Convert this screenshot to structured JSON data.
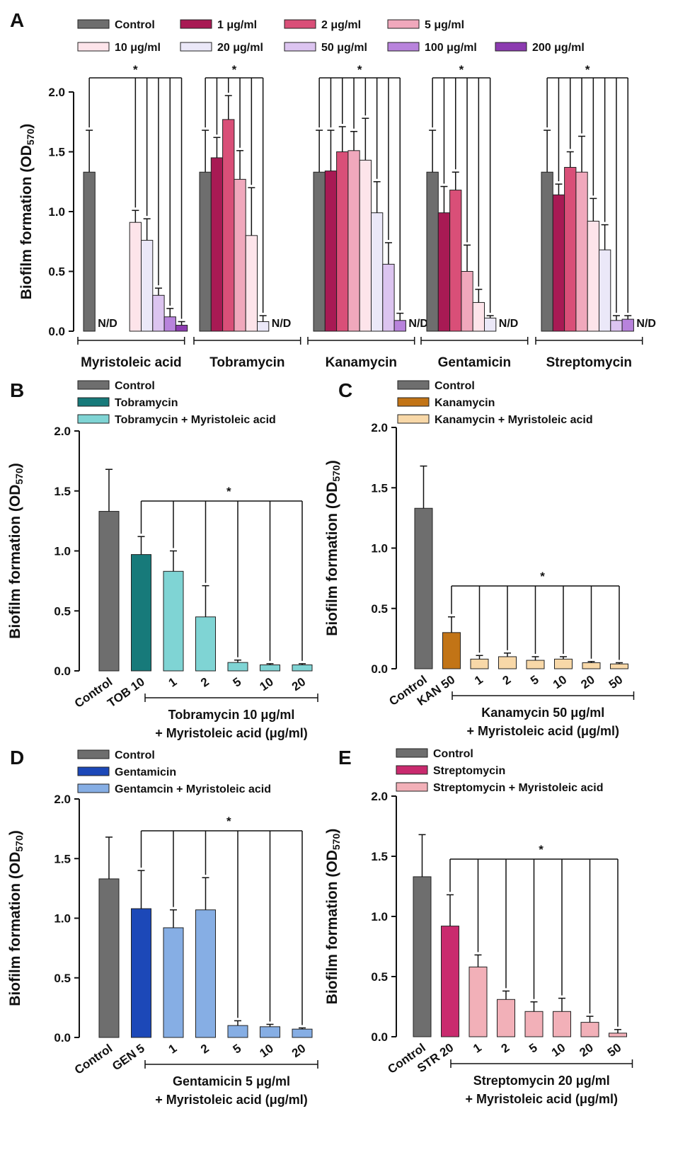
{
  "figure": {
    "panel_labels": [
      "A",
      "B",
      "C",
      "D",
      "E"
    ]
  },
  "chart_data": [
    {
      "panel": "A",
      "type": "bar",
      "ylabel": "Biofilm formation (OD570)",
      "ylim": [
        0,
        2.0
      ],
      "yticks": [
        "0.0",
        "0.5",
        "1.0",
        "1.5",
        "2.0"
      ],
      "legend": {
        "placement": "top",
        "entries": [
          {
            "label": "Control",
            "color": "#6e6e6e"
          },
          {
            "label": "1 μg/ml",
            "color": "#a81a54"
          },
          {
            "label": "2 μg/ml",
            "color": "#d94f78"
          },
          {
            "label": "5 μg/ml",
            "color": "#f0a8bc"
          },
          {
            "label": "10 μg/ml",
            "color": "#fde4ea"
          },
          {
            "label": "20 μg/ml",
            "color": "#ebe8f8"
          },
          {
            "label": "50 μg/ml",
            "color": "#dcc4f0"
          },
          {
            "label": "100 μg/ml",
            "color": "#b883dc"
          },
          {
            "label": "200 μg/ml",
            "color": "#8c3bb0"
          }
        ]
      },
      "groups": [
        {
          "name": "Myristoleic acid",
          "values": [
            1.33,
            null,
            null,
            null,
            0.91,
            0.76,
            0.3,
            0.12,
            0.05
          ],
          "errors": [
            0.35,
            null,
            null,
            null,
            0.1,
            0.18,
            0.06,
            0.07,
            0.03
          ],
          "nd": "N/D",
          "nd_index": 1
        },
        {
          "name": "Tobramycin",
          "values": [
            1.33,
            1.45,
            1.77,
            1.27,
            0.8,
            0.08,
            null,
            null,
            null
          ],
          "errors": [
            0.35,
            0.17,
            0.2,
            0.24,
            0.4,
            0.05,
            null,
            null,
            null
          ],
          "nd": "N/D",
          "nd_index": 6
        },
        {
          "name": "Kanamycin",
          "values": [
            1.33,
            1.34,
            1.5,
            1.51,
            1.43,
            0.99,
            0.56,
            0.09,
            null
          ],
          "errors": [
            0.35,
            0.34,
            0.21,
            0.16,
            0.35,
            0.26,
            0.18,
            0.06,
            null
          ],
          "nd": "N/D",
          "nd_index": 8
        },
        {
          "name": "Gentamicin",
          "values": [
            1.33,
            0.99,
            1.18,
            0.5,
            0.24,
            0.11,
            null,
            null,
            null
          ],
          "errors": [
            0.35,
            0.22,
            0.15,
            0.22,
            0.11,
            0.02,
            null,
            null,
            null
          ],
          "nd": "N/D",
          "nd_index": 6
        },
        {
          "name": "Streptomycin",
          "values": [
            1.33,
            1.14,
            1.37,
            1.33,
            0.92,
            0.68,
            0.09,
            0.1,
            null
          ],
          "errors": [
            0.35,
            0.09,
            0.13,
            0.3,
            0.19,
            0.21,
            0.04,
            0.03,
            null
          ],
          "nd": "N/D",
          "nd_index": 8
        }
      ],
      "significance": "*"
    },
    {
      "panel": "B",
      "type": "bar",
      "ylabel": "Biofilm formation (OD570)",
      "ylim": [
        0,
        2.0
      ],
      "yticks": [
        "0.0",
        "0.5",
        "1.0",
        "1.5",
        "2.0"
      ],
      "legend": [
        {
          "label": "Control",
          "color": "#6e6e6e"
        },
        {
          "label": "Tobramycin",
          "color": "#177a7a"
        },
        {
          "label": "Tobramycin + Myristoleic acid",
          "color": "#7fd4d4"
        }
      ],
      "categories": [
        "Control",
        "TOB 10",
        "1",
        "2",
        "5",
        "10",
        "20"
      ],
      "values": [
        1.33,
        0.97,
        0.83,
        0.45,
        0.07,
        0.05,
        0.05
      ],
      "errors": [
        0.35,
        0.15,
        0.17,
        0.26,
        0.02,
        0.01,
        0.01
      ],
      "bar_series": [
        0,
        1,
        2,
        2,
        2,
        2,
        2
      ],
      "significance": "*",
      "xlabel_line1": "Tobramycin 10 μg/ml",
      "xlabel_line2": "+ Myristoleic acid (μg/ml)"
    },
    {
      "panel": "C",
      "type": "bar",
      "ylabel": "Biofilm formation (OD570)",
      "ylim": [
        0,
        2.0
      ],
      "yticks": [
        "0.0",
        "0.5",
        "1.0",
        "1.5",
        "2.0"
      ],
      "legend": [
        {
          "label": "Control",
          "color": "#6e6e6e"
        },
        {
          "label": "Kanamycin",
          "color": "#c27416"
        },
        {
          "label": "Kanamycin + Myristoleic acid",
          "color": "#f8d8a8"
        }
      ],
      "categories": [
        "Control",
        "KAN 50",
        "1",
        "2",
        "5",
        "10",
        "20",
        "50"
      ],
      "values": [
        1.33,
        0.3,
        0.08,
        0.1,
        0.07,
        0.08,
        0.05,
        0.04
      ],
      "errors": [
        0.35,
        0.13,
        0.03,
        0.03,
        0.03,
        0.02,
        0.01,
        0.01
      ],
      "bar_series": [
        0,
        1,
        2,
        2,
        2,
        2,
        2,
        2
      ],
      "significance": "*",
      "xlabel_line1": "Kanamycin 50 μg/ml",
      "xlabel_line2": "+ Myristoleic acid (μg/ml)"
    },
    {
      "panel": "D",
      "type": "bar",
      "ylabel": "Biofilm formation (OD570)",
      "ylim": [
        0,
        2.0
      ],
      "yticks": [
        "0.0",
        "0.5",
        "1.0",
        "1.5",
        "2.0"
      ],
      "legend": [
        {
          "label": "Control",
          "color": "#6e6e6e"
        },
        {
          "label": "Gentamicin",
          "color": "#1c48b8"
        },
        {
          "label": "Gentamcin  + Myristoleic acid",
          "color": "#86aee4"
        }
      ],
      "categories": [
        "Control",
        "GEN 5",
        "1",
        "2",
        "5",
        "10",
        "20"
      ],
      "values": [
        1.33,
        1.08,
        0.92,
        1.07,
        0.1,
        0.09,
        0.07
      ],
      "errors": [
        0.35,
        0.32,
        0.15,
        0.27,
        0.04,
        0.02,
        0.01
      ],
      "bar_series": [
        0,
        1,
        2,
        2,
        2,
        2,
        2
      ],
      "significance": "*",
      "xlabel_line1": "Gentamicin 5 μg/ml",
      "xlabel_line2": "+ Myristoleic acid (μg/ml)"
    },
    {
      "panel": "E",
      "type": "bar",
      "ylabel": "Biofilm formation (OD570)",
      "ylim": [
        0,
        2.0
      ],
      "yticks": [
        "0.0",
        "0.5",
        "1.0",
        "1.5",
        "2.0"
      ],
      "legend": [
        {
          "label": "Control",
          "color": "#6e6e6e"
        },
        {
          "label": "Streptomycin",
          "color": "#c92a6e"
        },
        {
          "label": "Streptomycin + Myristoleic acid",
          "color": "#f2b0b8"
        }
      ],
      "categories": [
        "Control",
        "STR 20",
        "1",
        "2",
        "5",
        "10",
        "20",
        "50"
      ],
      "values": [
        1.33,
        0.92,
        0.58,
        0.31,
        0.21,
        0.21,
        0.12,
        0.03
      ],
      "errors": [
        0.35,
        0.26,
        0.1,
        0.07,
        0.08,
        0.11,
        0.05,
        0.03
      ],
      "bar_series": [
        0,
        1,
        2,
        2,
        2,
        2,
        2,
        2
      ],
      "significance": "*",
      "xlabel_line1": "Streptomycin 20 μg/ml",
      "xlabel_line2": "+ Myristoleic acid (μg/ml)"
    }
  ]
}
